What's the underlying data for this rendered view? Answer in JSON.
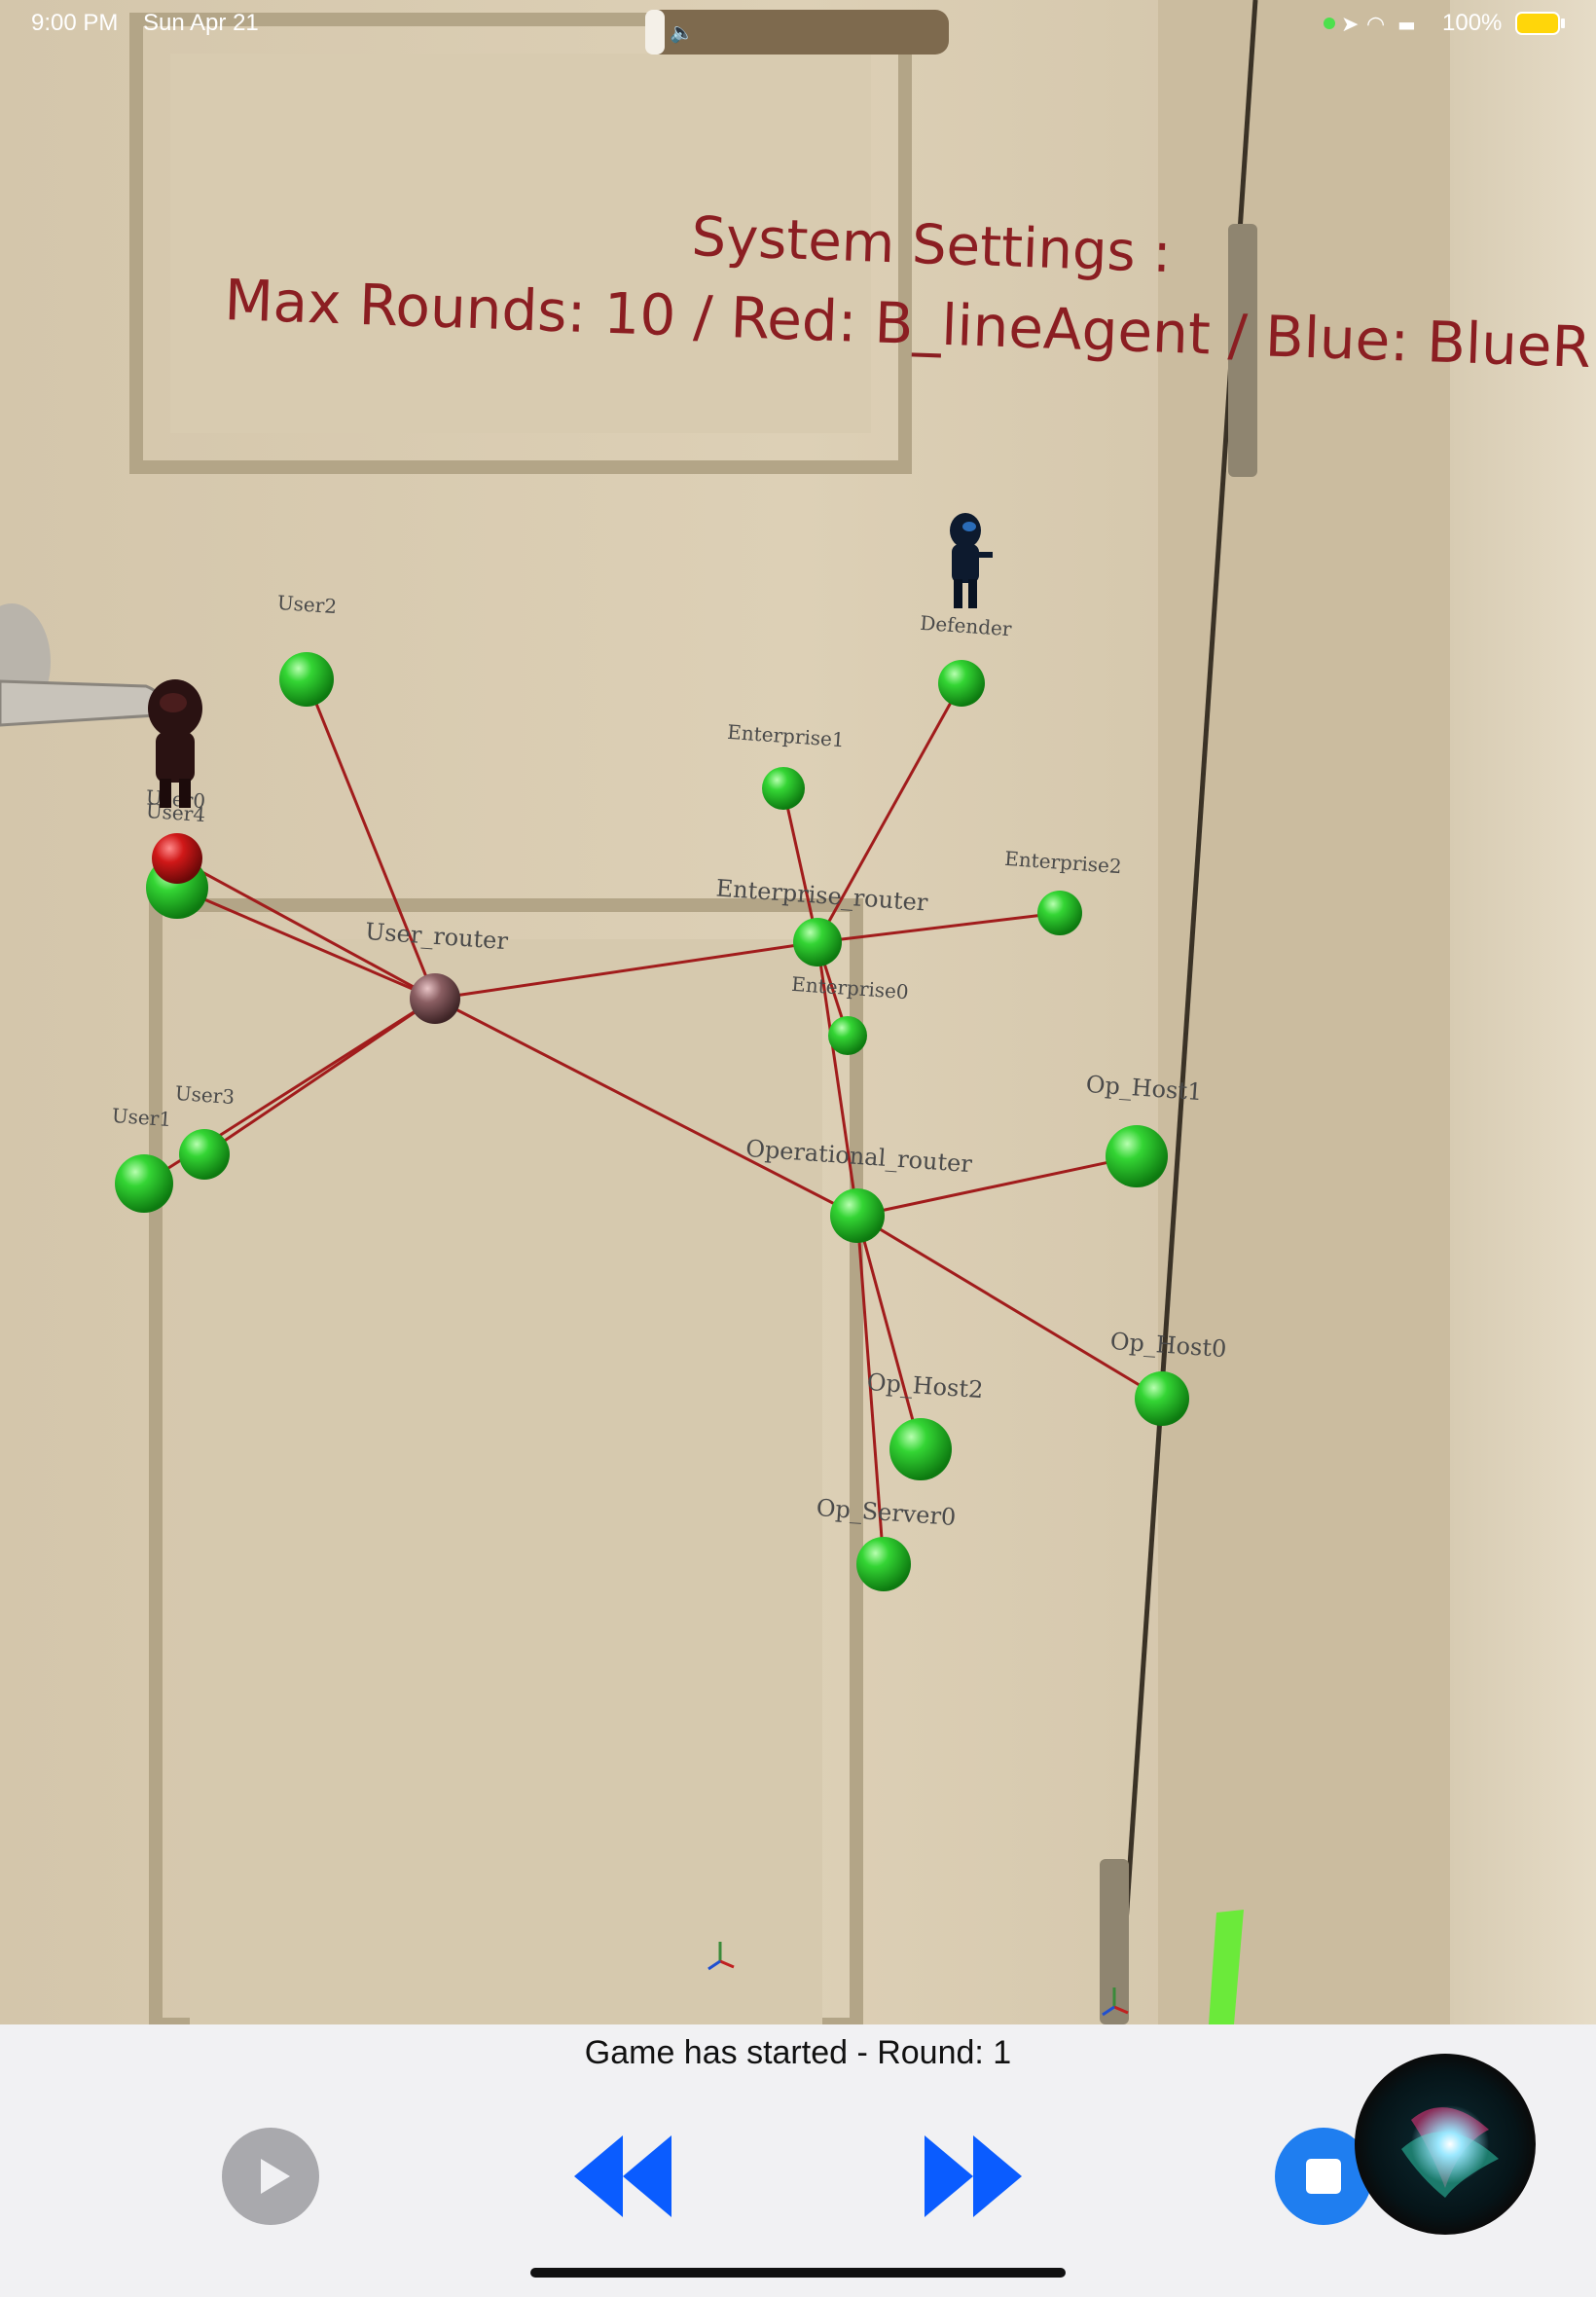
{
  "status_bar": {
    "time": "9:00 PM",
    "date": "Sun Apr 21",
    "battery": "100%"
  },
  "settings_overlay": {
    "title": "System Settings :",
    "line": "Max Rounds: 10 / Red: B_lineAgent / Blue: BlueR"
  },
  "agents": [
    {
      "name": "red-agent",
      "color": "#2a1212"
    },
    {
      "name": "blue-agent",
      "color": "#0d1a2e",
      "label": "Defender"
    }
  ],
  "network": {
    "nodes": [
      {
        "id": "User2",
        "label": "User2",
        "color": "green"
      },
      {
        "id": "User4",
        "label": "User4",
        "color": "green"
      },
      {
        "id": "User0",
        "label": "User0",
        "color": "red"
      },
      {
        "id": "User_router",
        "label": "User_router",
        "color": "mauve"
      },
      {
        "id": "User3",
        "label": "User3",
        "color": "green"
      },
      {
        "id": "User1",
        "label": "User1",
        "color": "green"
      },
      {
        "id": "Defender",
        "label": "Defender",
        "color": "green"
      },
      {
        "id": "Enterprise1",
        "label": "Enterprise1",
        "color": "green"
      },
      {
        "id": "Enterprise_router",
        "label": "Enterprise_router",
        "color": "green"
      },
      {
        "id": "Enterprise2",
        "label": "Enterprise2",
        "color": "green"
      },
      {
        "id": "Enterprise0",
        "label": "Enterprise0",
        "color": "green"
      },
      {
        "id": "Operational_router",
        "label": "Operational_router",
        "color": "green"
      },
      {
        "id": "Op_Host1",
        "label": "Op_Host1",
        "color": "green"
      },
      {
        "id": "Op_Host0",
        "label": "Op_Host0",
        "color": "green"
      },
      {
        "id": "Op_Host2",
        "label": "Op_Host2",
        "color": "green"
      },
      {
        "id": "Op_Server0",
        "label": "Op_Server0",
        "color": "green"
      }
    ],
    "edges": [
      [
        "User2",
        "User_router"
      ],
      [
        "User4",
        "User_router"
      ],
      [
        "User0",
        "User_router"
      ],
      [
        "User3",
        "User_router"
      ],
      [
        "User1",
        "User_router"
      ],
      [
        "User_router",
        "Enterprise_router"
      ],
      [
        "User_router",
        "Operational_router"
      ],
      [
        "Enterprise_router",
        "Defender"
      ],
      [
        "Enterprise_router",
        "Enterprise1"
      ],
      [
        "Enterprise_router",
        "Enterprise2"
      ],
      [
        "Enterprise_router",
        "Enterprise0"
      ],
      [
        "Enterprise_router",
        "Operational_router"
      ],
      [
        "Operational_router",
        "Op_Host1"
      ],
      [
        "Operational_router",
        "Op_Host0"
      ],
      [
        "Operational_router",
        "Op_Host2"
      ],
      [
        "Operational_router",
        "Op_Server0"
      ]
    ]
  },
  "game_status": "Game has started - Round: 1",
  "controls": {
    "play": {
      "state": "disabled"
    },
    "rewind": {
      "state": "enabled"
    },
    "forward": {
      "state": "enabled"
    },
    "stop": {
      "state": "enabled"
    }
  },
  "colors": {
    "accent_blue": "#0a5cff",
    "node_green": "#2fc52f",
    "node_red": "#c41a1a",
    "router_mauve": "#7a5558",
    "edge": "#a11c1c",
    "overlay_text": "#8b1e22"
  }
}
